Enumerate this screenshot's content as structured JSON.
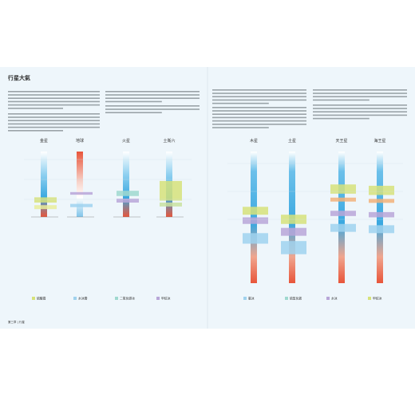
{
  "header": {
    "title": "行星大氣"
  },
  "left_planets": [
    {
      "name": "金星"
    },
    {
      "name": "地球"
    },
    {
      "name": "火星"
    },
    {
      "name": "土衛六"
    }
  ],
  "right_planets": [
    {
      "name": "木星"
    },
    {
      "name": "土星"
    },
    {
      "name": "天王星"
    },
    {
      "name": "海王星"
    }
  ],
  "legend_left": [
    "硫酸霧",
    "水冰雲",
    "二氧化碳冰",
    "甲烷冰"
  ],
  "legend_right": [
    "氨冰",
    "硫氫化銨",
    "水冰",
    "甲烷冰"
  ],
  "footer": {
    "left": "第三章 | 行星"
  }
}
